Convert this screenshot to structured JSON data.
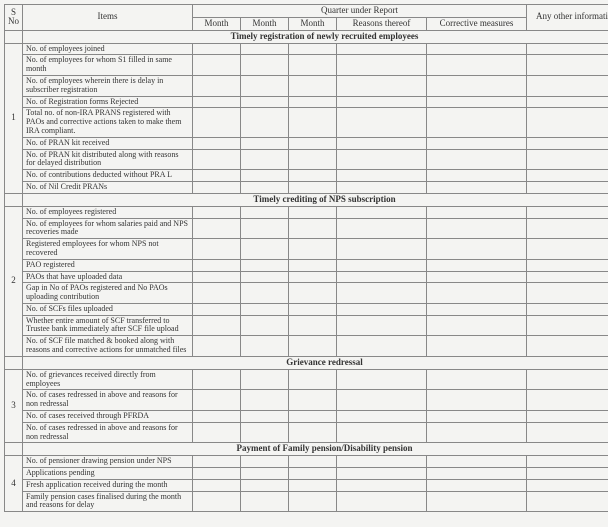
{
  "headers": {
    "sno": "S No",
    "item": "Items",
    "quarter": "Quarter under Report",
    "month": "Month",
    "reasons": "Reasons thereof",
    "corrective": "Corrective measures",
    "other": "Any other information"
  },
  "sections": [
    {
      "sno": "1",
      "title": "Timely registration of newly recruited employees",
      "items": [
        "No. of employees joined",
        "No. of employees for whom S1 filled in same month",
        "No. of employees wherein there is delay in subscriber registration",
        "No. of Registration forms Rejected",
        "Total no. of non-IRA PRANS registered with PAOs and corrective actions taken to make them IRA compliant.",
        "No. of PRAN kit received",
        "No. of PRAN kit distributed along with reasons for delayed distribution",
        "No. of contributions deducted without PRA L",
        "No. of Nil Credit PRANs"
      ]
    },
    {
      "sno": "2",
      "title": "Timely crediting of NPS subscription",
      "items": [
        "No. of employees registered",
        "No. of employees for whom salaries paid and NPS recoveries made",
        "Registered employees for whom NPS not recovered",
        "PAO registered",
        "PAOs that have uploaded data",
        "Gap in No of PAOs registered and No PAOs uploading contribution",
        "No. of SCFs files uploaded",
        "Whether entire amount of SCF transferred to Trustee bank immediately after SCF file upload",
        "No. of SCF file matched & booked along with reasons and corrective actions for unmatched files"
      ]
    },
    {
      "sno": "3",
      "title": "Grievance redressal",
      "items": [
        "No. of grievances received directly from employees",
        "No. of cases redressed in above and reasons for non redressal",
        "No. of cases received through PFRDA",
        "No. of cases redressed in above and reasons for non redressal"
      ]
    },
    {
      "sno": "4",
      "title": "Payment of Family pension/Disability pension",
      "items": [
        "No. of pensioner drawing pension under NPS",
        "Applications pending",
        "Fresh application received during the month",
        "Family pension cases finalised during the month and reasons for delay"
      ]
    }
  ]
}
